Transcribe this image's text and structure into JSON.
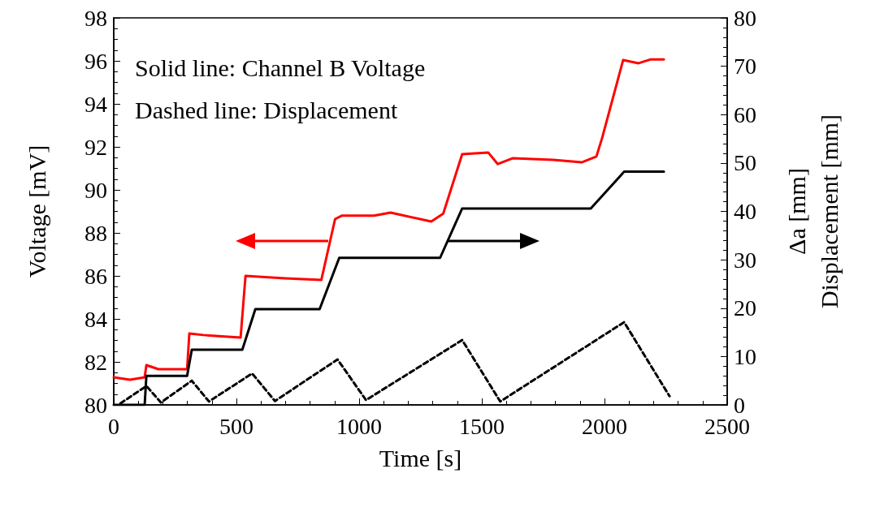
{
  "chart_data": {
    "type": "line",
    "xlabel": "Time [s]",
    "ylabel": "Voltage [mV]",
    "y2label": "Δa [mm]\nDisplacement [mm]",
    "annotations": [
      "Solid line: Channel B Voltage",
      "Dashed line: Displacement"
    ],
    "xlim": [
      0,
      2500
    ],
    "xticks": [
      0,
      500,
      1000,
      1500,
      2000,
      2500
    ],
    "ylim": [
      80,
      98
    ],
    "yticks": [
      80,
      82,
      84,
      86,
      88,
      90,
      92,
      94,
      96,
      98
    ],
    "y2lim": [
      0,
      80
    ],
    "y2ticks": [
      0,
      10,
      20,
      30,
      40,
      50,
      60,
      70,
      80
    ],
    "grid": false,
    "marker": "none",
    "series": [
      {
        "color": "#ff0000",
        "line_style": "solid",
        "x": [
          0,
          66,
          126,
          133,
          182,
          299,
          308,
          365,
          517,
          537,
          697,
          846,
          902,
          929,
          1061,
          1128,
          1294,
          1343,
          1420,
          1526,
          1565,
          1625,
          1791,
          1907,
          1967,
          1990,
          2076,
          2139,
          2189,
          2242
        ],
        "values": [
          81.28,
          81.17,
          81.28,
          81.85,
          81.66,
          81.66,
          83.32,
          83.25,
          83.13,
          86.0,
          85.89,
          85.81,
          88.64,
          88.8,
          88.8,
          88.94,
          88.53,
          88.9,
          91.66,
          91.74,
          91.2,
          91.47,
          91.4,
          91.28,
          91.55,
          92.4,
          96.04,
          95.89,
          96.07,
          96.07
        ]
      },
      {
        "color": "#000000",
        "line_style": "solid",
        "axis": "y2",
        "x": [
          0,
          126,
          133,
          299,
          318,
          524,
          577,
          839,
          919,
          1330,
          1420,
          1944,
          2080,
          2242
        ],
        "values": [
          0,
          0,
          6.0,
          6.0,
          11.4,
          11.4,
          19.8,
          19.8,
          30.4,
          30.4,
          40.6,
          40.6,
          48.2,
          48.2
        ]
      },
      {
        "color": "#000000",
        "line_style": "dashed",
        "axis": "y2",
        "x": [
          27,
          133,
          192,
          318,
          388,
          564,
          657,
          912,
          1028,
          1420,
          1575,
          2080,
          2265
        ],
        "values": [
          0.3,
          3.9,
          0.5,
          5.0,
          0.7,
          6.5,
          0.8,
          9.4,
          1.0,
          13.4,
          0.7,
          17.1,
          1.8
        ]
      }
    ]
  }
}
